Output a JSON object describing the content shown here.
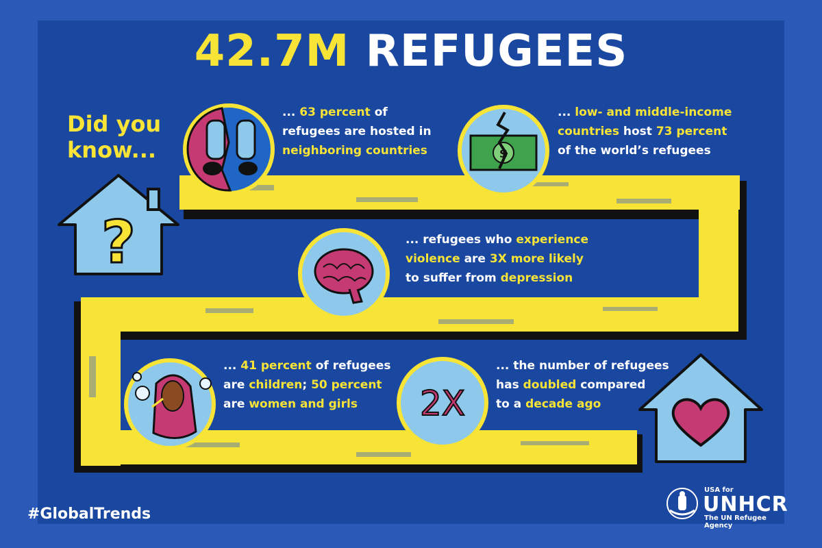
{
  "title": {
    "number": "42.7M",
    "word": "REFUGEES"
  },
  "intro": {
    "line1": "Did you",
    "line2": "know..."
  },
  "facts": [
    {
      "parts": [
        "... ",
        "63 percent",
        " of",
        "refugees are hosted in",
        "neighboring countries"
      ],
      "icon": "shoes-on-border-icon"
    },
    {
      "parts": [
        "... ",
        "low- and middle-income",
        "countries",
        " host ",
        "73 percent",
        "of the world’s refugees"
      ],
      "icon": "broken-money-icon"
    },
    {
      "parts": [
        "... refugees who ",
        "experience",
        "violence",
        " are ",
        "3X more likely",
        "to suffer from ",
        "depression"
      ],
      "icon": "brain-icon"
    },
    {
      "parts": [
        "... ",
        "41 percent",
        " of refugees",
        "are ",
        "children",
        "; ",
        "50 percent",
        "are ",
        "women and girls"
      ],
      "icon": "girl-blowing-bubbles-icon"
    },
    {
      "parts": [
        "... the number of refugees",
        "has ",
        "doubled",
        " compared",
        "to a ",
        "decade ago"
      ],
      "icon": "two-x-icon"
    }
  ],
  "two_x_label": "2X",
  "hashtag": "#GlobalTrends",
  "logo": {
    "prefix": "USA for",
    "name": "UNHCR",
    "tagline": "The UN Refugee Agency"
  },
  "colors": {
    "background": "#2a59b8",
    "panel": "#1a47a0",
    "accent_yellow": "#f7e436",
    "light_blue": "#8ec9ec",
    "pink": "#c63a73",
    "green": "#3fa34d"
  }
}
